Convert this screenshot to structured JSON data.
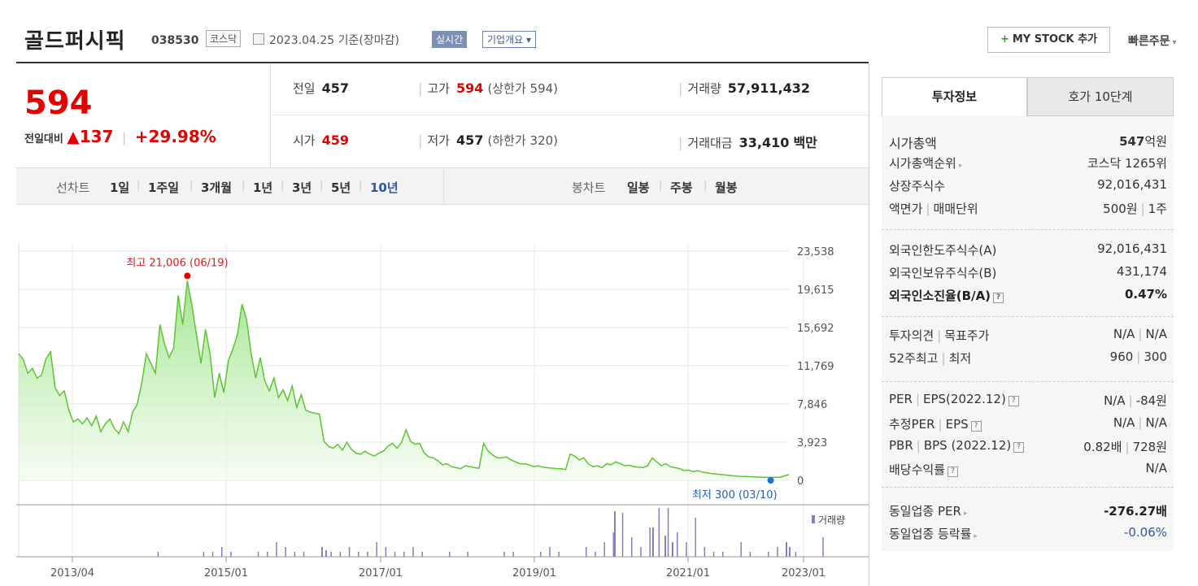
{
  "header": {
    "title": "골드퍼시픽",
    "code": "038530",
    "market": "코스닥",
    "date_text": "2023.04.25 기준(장마감)",
    "realtime_label": "실시간",
    "corp_info_label": "기업개요 ▾",
    "mystock_plus": "+",
    "mystock_label": "MY STOCK 추가",
    "quick_order_label": "빠른주문",
    "quick_chevron": "▾"
  },
  "price": {
    "current": "594",
    "change_label": "전일대비",
    "up_arrow": "▲",
    "change_value": "137",
    "change_rate": "+29.98%",
    "divider": "|"
  },
  "quote": {
    "prev_close_label": "전일",
    "prev_close": "457",
    "high_label": "고가",
    "high": "594",
    "upper_limit": "(상한가 594)",
    "volume_label": "거래량",
    "volume": "57,911,432",
    "open_label": "시가",
    "open": "459",
    "low_label": "저가",
    "low": "457",
    "lower_limit": "(하한가 320)",
    "amount_label": "거래대금",
    "amount": "33,410",
    "amount_unit": "백만",
    "bar": "|"
  },
  "period": {
    "line_label": "선차트",
    "tabs": [
      "1일",
      "1주일",
      "3개월",
      "1년",
      "3년",
      "5년",
      "10년"
    ],
    "candle_label": "봉차트",
    "candle_tabs": [
      "일봉",
      "주봉",
      "월봉"
    ],
    "sep": "|"
  },
  "chart_data": {
    "type": "area",
    "y_ticks": [
      "23,538",
      "19,615",
      "15,692",
      "11,769",
      "7,846",
      "3,923",
      "0"
    ],
    "ylim": [
      0,
      23538
    ],
    "x_ticks": [
      "2013/04",
      "2015/01",
      "2017/01",
      "2019/01",
      "2021/01",
      "2023/01"
    ],
    "high_annotation": "최고 21,006 (06/19)",
    "low_annotation": "최저 300 (03/10)",
    "volume_legend": "거래량",
    "series": [
      {
        "values": [
          13000,
          12400,
          11000,
          11500,
          10500,
          10800,
          12500,
          13200,
          9500,
          8700,
          9200,
          7200,
          6000,
          6300,
          5800,
          6400,
          5600,
          6600,
          5000,
          5800,
          6300,
          5300,
          4800,
          6000,
          5000,
          7000,
          7800,
          10000,
          13000,
          12000,
          11000,
          16000,
          14000,
          12600,
          13600,
          19000,
          16000,
          20500,
          18000,
          15000,
          12000,
          15500,
          13000,
          8500,
          11000,
          9000,
          12300,
          13500,
          15000,
          18100,
          16500,
          13000,
          10500,
          12600,
          10200,
          9200,
          10500,
          8500,
          9300,
          8200,
          9700,
          7500,
          8800,
          7200,
          7000,
          6900,
          6800,
          4000,
          3500,
          3300,
          3700,
          3100,
          3900,
          3200,
          2800,
          2700,
          3000,
          2700,
          2500,
          2800,
          3000,
          3500,
          3800,
          3300,
          3900,
          5200,
          4000,
          3700,
          3800,
          2800,
          2400,
          2300,
          2000,
          1600,
          1700,
          1400,
          1300,
          1200,
          1500,
          1400,
          1300,
          1250,
          3800,
          3000,
          2600,
          2300,
          2300,
          2400,
          2100,
          1900,
          1700,
          1700,
          1600,
          1400,
          1500,
          1350,
          1300,
          1250,
          1200,
          1200,
          1100,
          2700,
          2500,
          2100,
          2300,
          1700,
          1400,
          1500,
          1300,
          1700,
          1600,
          1900,
          1700,
          1500,
          1550,
          1400,
          1350,
          1300,
          1500,
          2300,
          1900,
          1500,
          1700,
          1400,
          1300,
          1200,
          1000,
          1050,
          900,
          1000,
          850,
          780,
          700,
          650,
          600,
          550,
          500,
          450,
          420,
          400,
          380,
          350,
          330,
          320,
          310,
          300,
          310,
          320,
          457,
          594
        ]
      }
    ]
  },
  "panel": {
    "tab_active": "투자정보",
    "tab_other": "호가 10단계",
    "qmark": "?",
    "tri": "▸",
    "sep": "|",
    "market_cap_label": "시가총액",
    "market_cap_num": "547",
    "market_cap_unit": "억원",
    "cap_rank_label": "시가총액순위",
    "cap_rank": "코스닥 1265위",
    "shares_label": "상장주식수",
    "shares": "92,016,431",
    "par_label": "액면가",
    "unit_label": "매매단위",
    "par": "500원",
    "unit": "1주",
    "foreign_limit_label": "외국인한도주식수(A)",
    "foreign_limit": "92,016,431",
    "foreign_hold_label": "외국인보유주식수(B)",
    "foreign_hold": "431,174",
    "foreign_ratio_label": "외국인소진율(B/A)",
    "foreign_ratio": "0.47%",
    "opinion_label": "투자의견",
    "target_label": "목표주가",
    "opinion": "N/A",
    "target": "N/A",
    "w52_label": "52주최고",
    "w52_low_label": "최저",
    "w52_high": "960",
    "w52_low": "300",
    "per_label": "PER",
    "eps_label": "EPS(2022.12)",
    "per": "N/A",
    "eps": "-84원",
    "est_per_label": "추정PER",
    "est_eps_label": "EPS",
    "est_per": "N/A",
    "est_eps": "N/A",
    "pbr_label": "PBR",
    "bps_label": "BPS (2022.12)",
    "pbr": "0.82배",
    "bps": "728원",
    "dividend_label": "배당수익률",
    "dividend": "N/A",
    "ind_per_label": "동일업종 PER",
    "ind_per": "-276.27배",
    "ind_rate_label": "동일업종 등락률",
    "ind_rate": "-0.06%"
  }
}
